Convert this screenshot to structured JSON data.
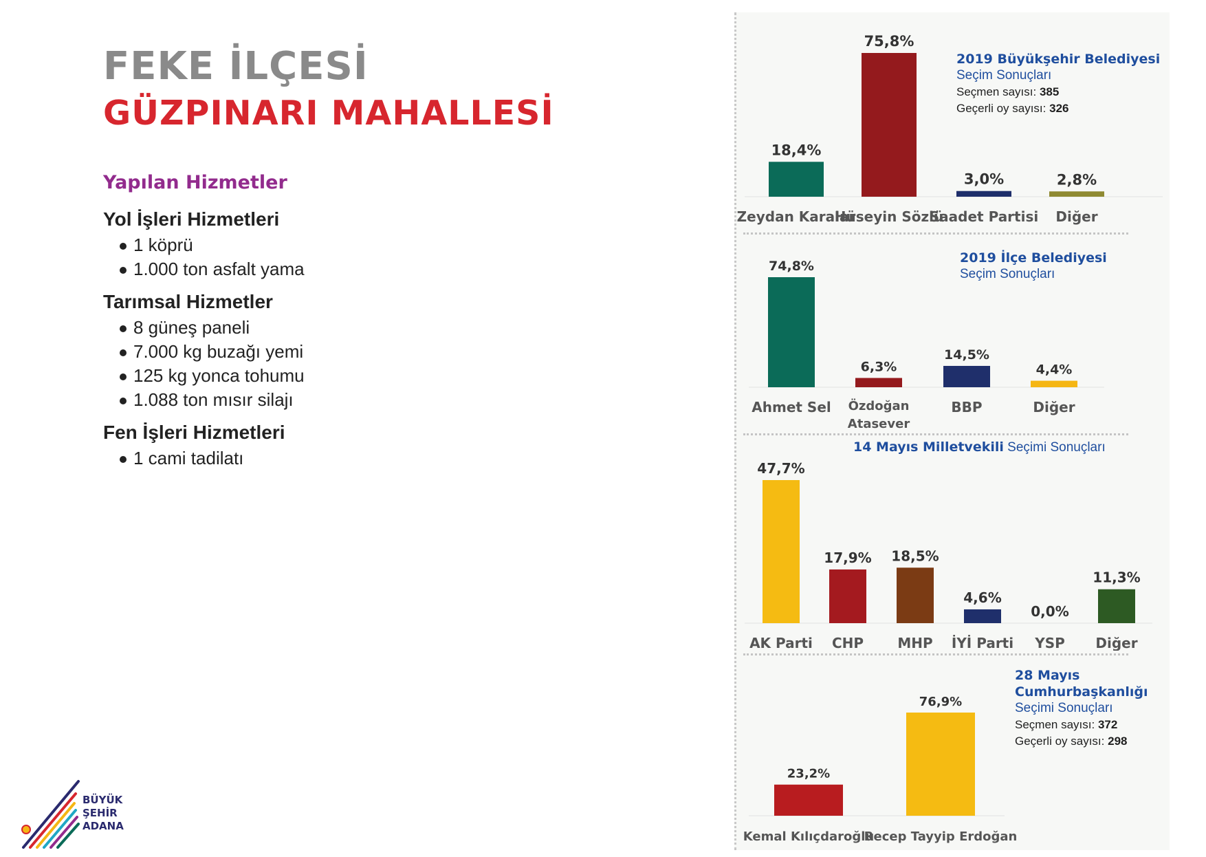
{
  "header": {
    "title": "FEKE İLÇESİ",
    "subtitle": "GÜZPINARI MAHALLESİ"
  },
  "services": {
    "heading": "Yapılan Hizmetler",
    "groups": [
      {
        "title": "Yol İşleri Hizmetleri",
        "items": [
          "1 köprü",
          "1.000 ton asfalt yama"
        ]
      },
      {
        "title": "Tarımsal Hizmetler",
        "items": [
          "8 güneş paneli",
          "7.000 kg buzağı yemi",
          "125 kg yonca tohumu",
          "1.088 ton mısır silajı"
        ]
      },
      {
        "title": "Fen İşleri Hizmetleri",
        "items": [
          "1 cami tadilatı"
        ]
      }
    ]
  },
  "chart_data": [
    {
      "type": "bar",
      "title": "2019 Büyükşehir Belediyesi",
      "subtitle": "Seçim Sonuçları",
      "voters_label": "Seçmen sayısı:",
      "voters": "385",
      "valid_label": "Geçerli oy sayısı:",
      "valid": "326",
      "categories": [
        "Zeydan Karalar",
        "Hüseyin Sözlü",
        "Saadet Partisi",
        "Diğer"
      ],
      "values": [
        18.4,
        75.8,
        3.0,
        2.8
      ],
      "labels": [
        "18,4%",
        "75,8%",
        "3,0%",
        "2,8%"
      ],
      "colors": [
        "#0b6b58",
        "#941a1d",
        "#1f2f6b",
        "#8f8a32"
      ]
    },
    {
      "type": "bar",
      "title": "2019 İlçe Belediyesi",
      "subtitle": "Seçim Sonuçları",
      "categories": [
        "Ahmet Sel",
        "Özdoğan Atasever",
        "BBP",
        "Diğer"
      ],
      "values": [
        74.8,
        6.3,
        14.5,
        4.4
      ],
      "labels": [
        "74,8%",
        "6,3%",
        "14,5%",
        "4,4%"
      ],
      "colors": [
        "#0b6b58",
        "#941a1d",
        "#1f2f6b",
        "#f5b614"
      ]
    },
    {
      "type": "bar",
      "title": "14 Mayıs Milletvekili",
      "subtitle": "Seçimi Sonuçları",
      "categories": [
        "AK Parti",
        "CHP",
        "MHP",
        "İYİ Parti",
        "YSP",
        "Diğer"
      ],
      "values": [
        47.7,
        17.9,
        18.5,
        4.6,
        0.0,
        11.3
      ],
      "labels": [
        "47,7%",
        "17,9%",
        "18,5%",
        "4,6%",
        "0,0%",
        "11,3%"
      ],
      "colors": [
        "#f5bb12",
        "#a41a1f",
        "#7b3b14",
        "#1f2f6b",
        "#9b9b9b",
        "#2d5a23"
      ]
    },
    {
      "type": "bar",
      "title": "28 Mayıs Cumhurbaşkanlığı",
      "subtitle": "Seçimi Sonuçları",
      "voters_label": "Seçmen sayısı:",
      "voters": "372",
      "valid_label": "Geçerli oy sayısı:",
      "valid": "298",
      "categories": [
        "Kemal Kılıçdaroğlu",
        "Recep Tayyip Erdoğan"
      ],
      "values": [
        23.2,
        76.9
      ],
      "labels": [
        "23,2%",
        "76,9%"
      ],
      "colors": [
        "#b81c1f",
        "#f5bb12"
      ]
    }
  ],
  "logo": {
    "line1": "BÜYÜK",
    "line2": "ŞEHİR",
    "line3": "ADANA"
  }
}
